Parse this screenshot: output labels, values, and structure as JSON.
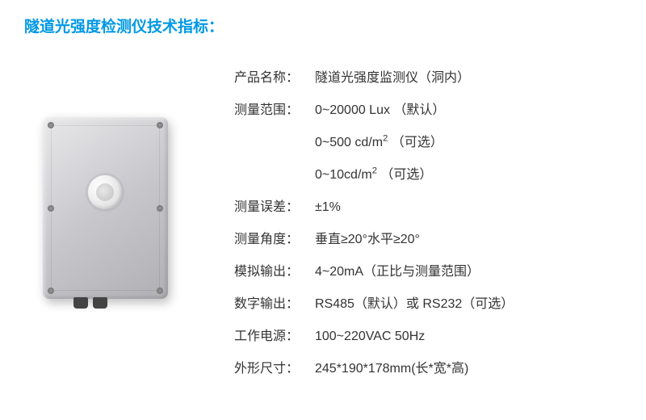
{
  "title": "隧道光强度检测仪技术指标：",
  "specs": {
    "product_name": {
      "label": "产品名称：",
      "value": "隧道光强度监测仪（洞内）"
    },
    "range": {
      "label": "测量范围：",
      "value1_a": "0~20000 Lux  （默认）",
      "value2_a": "0~500 cd/m",
      "value2_b": "  （可选）",
      "value3_a": "0~10cd/m",
      "value3_b": "    （可选）"
    },
    "error": {
      "label": "测量误差：",
      "value": " ±1%"
    },
    "angle": {
      "label": "测量角度：",
      "value": "垂直≥20°水平≥20°"
    },
    "analog": {
      "label": "模拟输出：",
      "value": "4~20mA（正比与测量范围）"
    },
    "digital": {
      "label": "数字输出：",
      "value": "RS485（默认）或 RS232（可选）"
    },
    "power": {
      "label": "工作电源：",
      "value": "100~220VAC 50Hz"
    },
    "size": {
      "label": "外形尺寸：",
      "value": "245*190*178mm(长*宽*高)"
    }
  },
  "colors": {
    "title": "#0099e5",
    "text": "#333333",
    "background": "#ffffff"
  }
}
